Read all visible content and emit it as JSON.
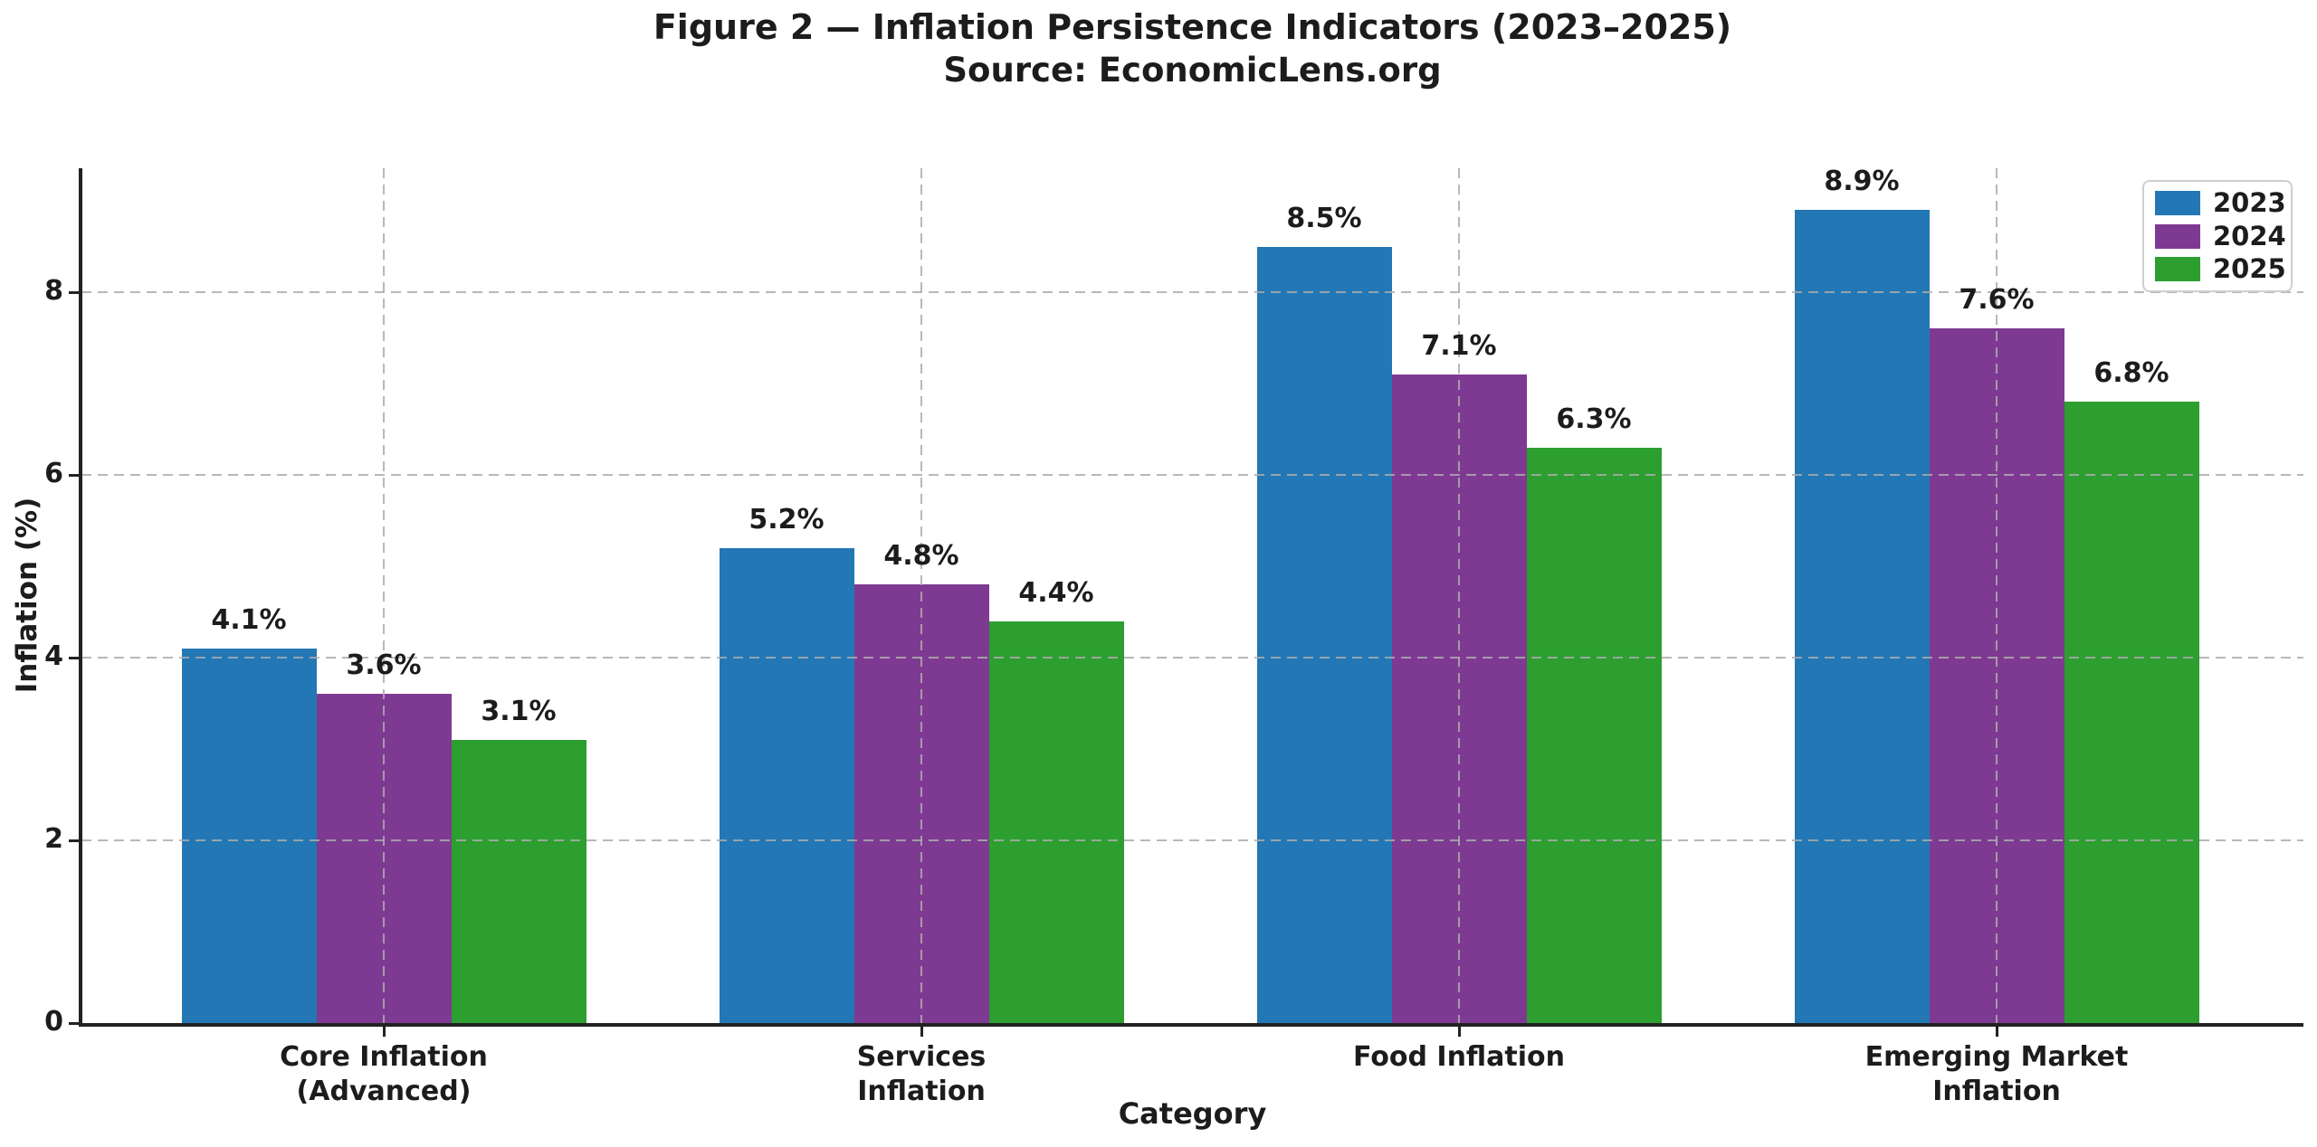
{
  "figure": {
    "title": "Figure 2 — Inflation Persistence Indicators (2023–2025)",
    "subtitle": "Source: EconomicLens.org"
  },
  "chart_data": {
    "type": "bar",
    "title": "Figure 2 — Inflation Persistence Indicators (2023–2025)",
    "subtitle": "Source: EconomicLens.org",
    "xlabel": "Category",
    "ylabel": "Inflation (%)",
    "categories": [
      [
        "Core Inflation",
        "(Advanced)"
      ],
      [
        "Services",
        "Inflation"
      ],
      [
        "Food Inflation"
      ],
      [
        "Emerging Market",
        "Inflation"
      ]
    ],
    "series": [
      {
        "name": "2023",
        "color": "#2377b4",
        "values": [
          4.1,
          5.2,
          8.5,
          8.9
        ]
      },
      {
        "name": "2024",
        "color": "#7e3a92",
        "values": [
          3.6,
          4.8,
          7.1,
          7.6
        ]
      },
      {
        "name": "2025",
        "color": "#2d9e30",
        "values": [
          3.1,
          4.4,
          6.3,
          6.8
        ]
      }
    ],
    "data_labels": [
      [
        "4.1%",
        "5.2%",
        "8.5%",
        "8.9%"
      ],
      [
        "3.6%",
        "4.8%",
        "7.1%",
        "7.6%"
      ],
      [
        "3.1%",
        "4.4%",
        "6.3%",
        "6.8%"
      ]
    ],
    "data_label_suffix": "%",
    "yticks": [
      0,
      2,
      4,
      6,
      8
    ],
    "ylim": [
      0,
      9.35
    ],
    "grid": {
      "style": "dashed",
      "axes": "both",
      "above_bars": true,
      "color": "#c8c8c8"
    },
    "legend": {
      "position": "upper right",
      "entries": [
        "2023",
        "2024",
        "2025"
      ]
    },
    "background_color": "#ffffff",
    "text_color": "#1c1c1c"
  }
}
